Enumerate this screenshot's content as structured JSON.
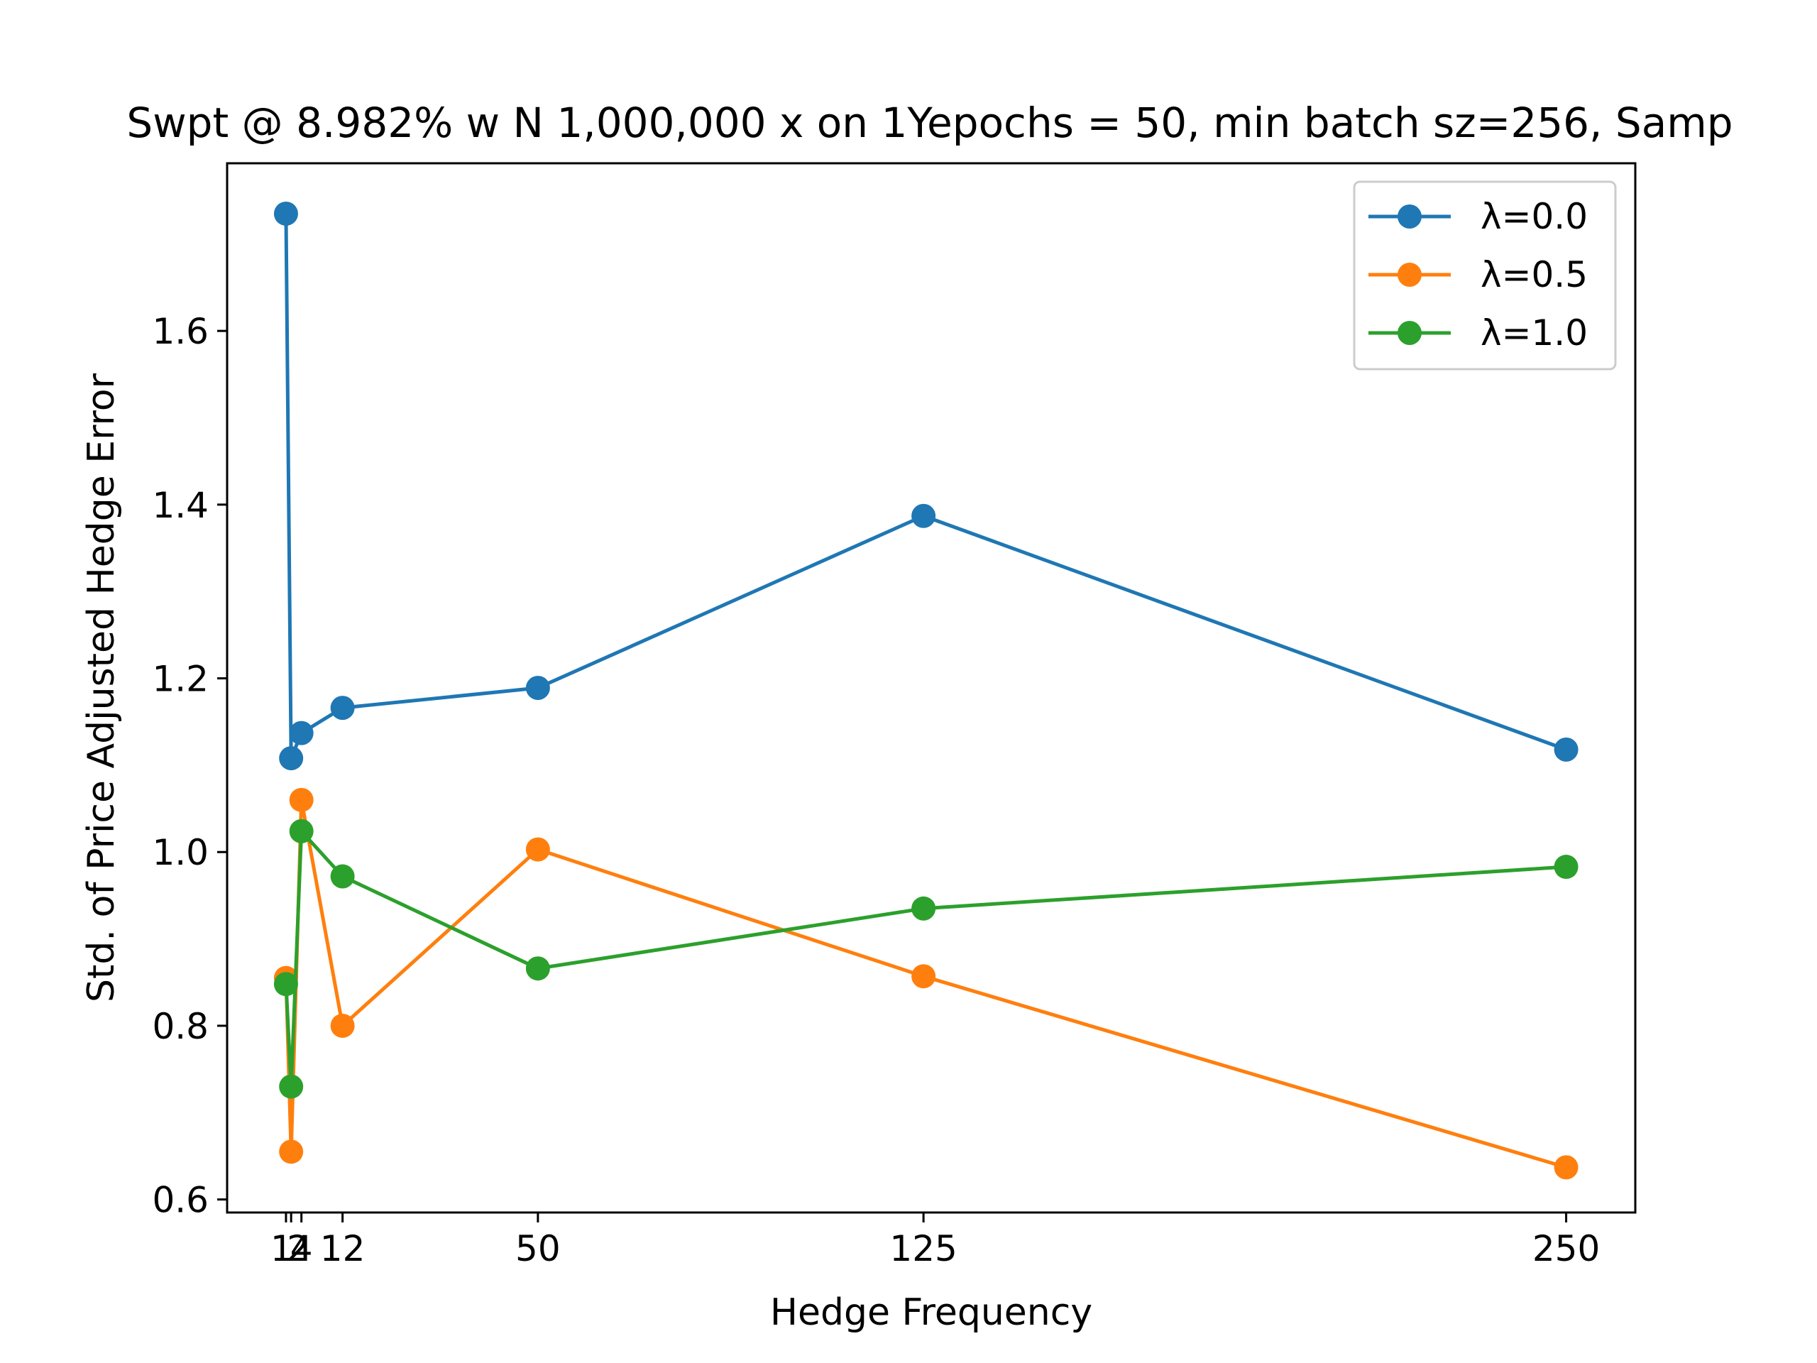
{
  "chart_data": {
    "type": "line",
    "title": "Swpt @ 8.982% w N 1,000,000 x on 1Yepochs = 50, min batch sz=256, Samp",
    "xlabel": "Hedge Frequency",
    "ylabel": "Std. of Price Adjusted Hedge Error",
    "x": [
      1,
      2,
      4,
      12,
      50,
      125,
      250
    ],
    "xticks": [
      1,
      2,
      4,
      12,
      50,
      125,
      250
    ],
    "xtick_labels": [
      "1",
      "2",
      "4",
      "12",
      "50",
      "125",
      "250"
    ],
    "xlim": [
      -10.45,
      263.45
    ],
    "yticks": [
      0.6,
      0.8,
      1.0,
      1.2,
      1.4,
      1.6
    ],
    "ytick_labels": [
      "0.6",
      "0.8",
      "1.0",
      "1.2",
      "1.4",
      "1.6"
    ],
    "ylim": [
      0.585,
      1.793
    ],
    "grid": false,
    "legend_position": "top-right",
    "series": [
      {
        "name": "λ=0.0",
        "color": "#1f77b4",
        "values": [
          1.735,
          1.108,
          1.137,
          1.166,
          1.189,
          1.387,
          1.118
        ]
      },
      {
        "name": "λ=0.5",
        "color": "#ff7f0e",
        "values": [
          0.855,
          0.655,
          1.06,
          0.8,
          1.003,
          0.857,
          0.637
        ]
      },
      {
        "name": "λ=1.0",
        "color": "#2ca02c",
        "values": [
          0.848,
          0.73,
          1.024,
          0.972,
          0.866,
          0.935,
          0.983
        ]
      }
    ]
  }
}
